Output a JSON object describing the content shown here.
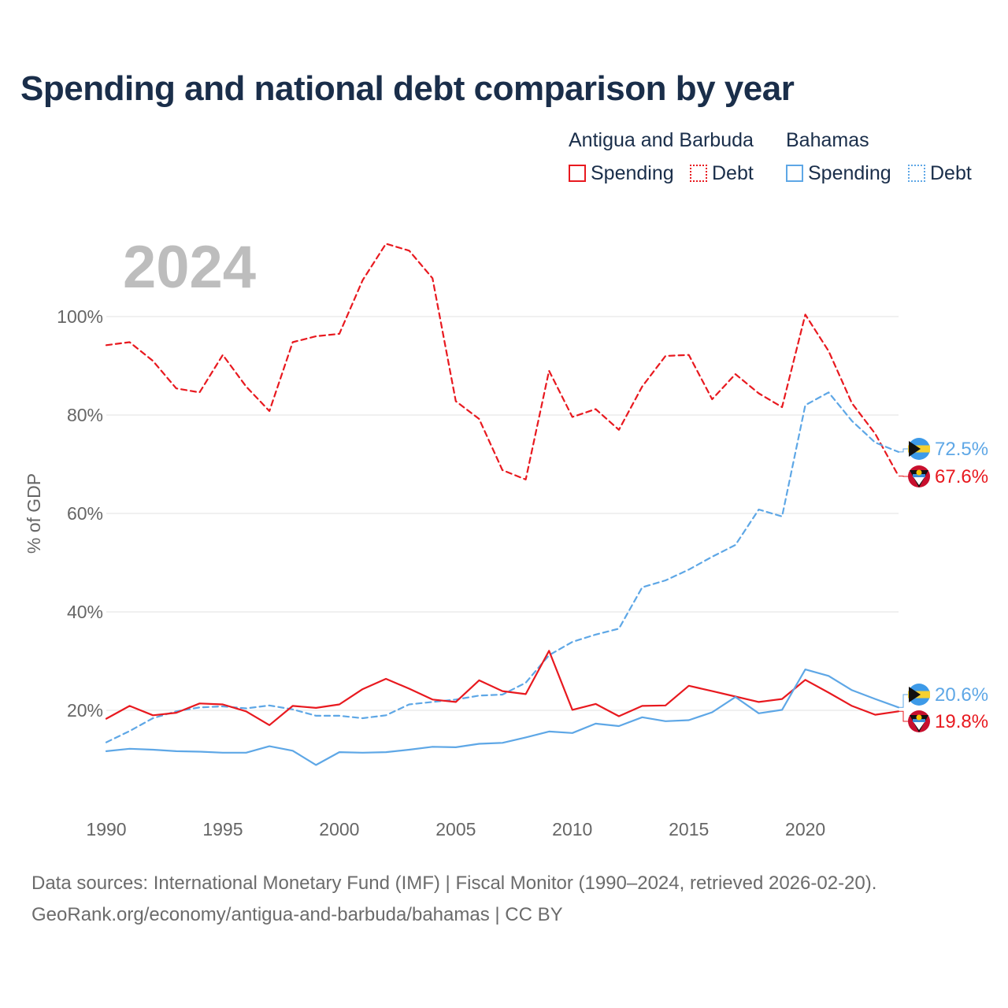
{
  "title": "Spending and national debt comparison by year",
  "legend": {
    "groups": [
      {
        "country": "Antigua and Barbuda",
        "spending_label": "Spending",
        "debt_label": "Debt",
        "color": "#e8191f"
      },
      {
        "country": "Bahamas",
        "spending_label": "Spending",
        "debt_label": "Debt",
        "color": "#5ea7e6"
      }
    ]
  },
  "year_watermark": "2024",
  "source_line1": "Data sources: International Monetary Fund (IMF) | Fiscal Monitor (1990–2024, retrieved 2026-02-20).",
  "source_line2": "GeoRank.org/economy/antigua-and-barbuda/bahamas | CC BY",
  "chart_data": {
    "type": "line",
    "title": "Spending and national debt comparison by year",
    "ylabel": "% of GDP",
    "xlabel": "",
    "xlim": [
      1990,
      2024
    ],
    "ylim": [
      5,
      120
    ],
    "x_ticks": [
      "1990",
      "1995",
      "2000",
      "2005",
      "2010",
      "2015",
      "2020"
    ],
    "x_tick_values": [
      1990,
      1995,
      2000,
      2005,
      2010,
      2015,
      2020
    ],
    "y_ticks": [
      "20%",
      "40%",
      "60%",
      "80%",
      "100%"
    ],
    "y_tick_values": [
      20,
      40,
      60,
      80,
      100
    ],
    "x": [
      1990,
      1991,
      1992,
      1993,
      1994,
      1995,
      1996,
      1997,
      1998,
      1999,
      2000,
      2001,
      2002,
      2003,
      2004,
      2005,
      2006,
      2007,
      2008,
      2009,
      2010,
      2011,
      2012,
      2013,
      2014,
      2015,
      2016,
      2017,
      2018,
      2019,
      2020,
      2021,
      2022,
      2023,
      2024
    ],
    "series": [
      {
        "name": "Antigua and Barbuda Debt",
        "country": "Antigua and Barbuda",
        "metric": "Debt",
        "color": "#e8191f",
        "style": "dashed",
        "values": [
          94.2,
          94.8,
          91.0,
          85.4,
          84.6,
          92.2,
          85.8,
          80.8,
          94.8,
          96.0,
          96.5,
          107.4,
          114.8,
          113.4,
          107.8,
          82.8,
          79.2,
          68.8,
          66.9,
          89.0,
          79.6,
          81.2,
          77.0,
          85.8,
          92.0,
          92.2,
          83.2,
          88.3,
          84.4,
          81.6,
          100.4,
          93.0,
          82.4,
          76.2,
          67.6
        ],
        "end_label": "67.6%"
      },
      {
        "name": "Bahamas Debt",
        "country": "Bahamas",
        "metric": "Debt",
        "color": "#5ea7e6",
        "style": "dashed",
        "values": [
          13.5,
          15.8,
          18.4,
          19.8,
          20.6,
          20.8,
          20.4,
          21.0,
          20.2,
          18.9,
          18.9,
          18.4,
          19.0,
          21.2,
          21.7,
          22.2,
          23.0,
          23.2,
          25.6,
          31.2,
          33.9,
          35.4,
          36.6,
          45.0,
          46.4,
          48.6,
          51.2,
          53.6,
          60.8,
          59.4,
          82.0,
          84.6,
          78.8,
          74.4,
          72.5
        ],
        "end_label": "72.5%"
      },
      {
        "name": "Antigua and Barbuda Spending",
        "country": "Antigua and Barbuda",
        "metric": "Spending",
        "color": "#e8191f",
        "style": "solid",
        "values": [
          18.3,
          20.9,
          19.0,
          19.5,
          21.4,
          21.2,
          19.8,
          17.0,
          20.9,
          20.5,
          21.2,
          24.3,
          26.4,
          24.4,
          22.2,
          21.7,
          26.1,
          23.9,
          23.3,
          32.1,
          20.1,
          21.3,
          18.8,
          20.9,
          21.0,
          25.0,
          23.9,
          22.8,
          21.7,
          22.3,
          26.2,
          23.6,
          20.9,
          19.1,
          19.8
        ],
        "end_label": "19.8%"
      },
      {
        "name": "Bahamas Spending",
        "country": "Bahamas",
        "metric": "Spending",
        "color": "#5ea7e6",
        "style": "solid",
        "values": [
          11.7,
          12.2,
          12.0,
          11.7,
          11.6,
          11.4,
          11.4,
          12.7,
          11.8,
          8.9,
          11.5,
          11.4,
          11.5,
          12.0,
          12.6,
          12.5,
          13.2,
          13.4,
          14.5,
          15.7,
          15.4,
          17.3,
          16.8,
          18.6,
          17.8,
          18.0,
          19.6,
          22.7,
          19.4,
          20.1,
          28.3,
          27.0,
          24.1,
          22.3,
          20.6
        ],
        "end_label": "20.6%"
      }
    ]
  }
}
